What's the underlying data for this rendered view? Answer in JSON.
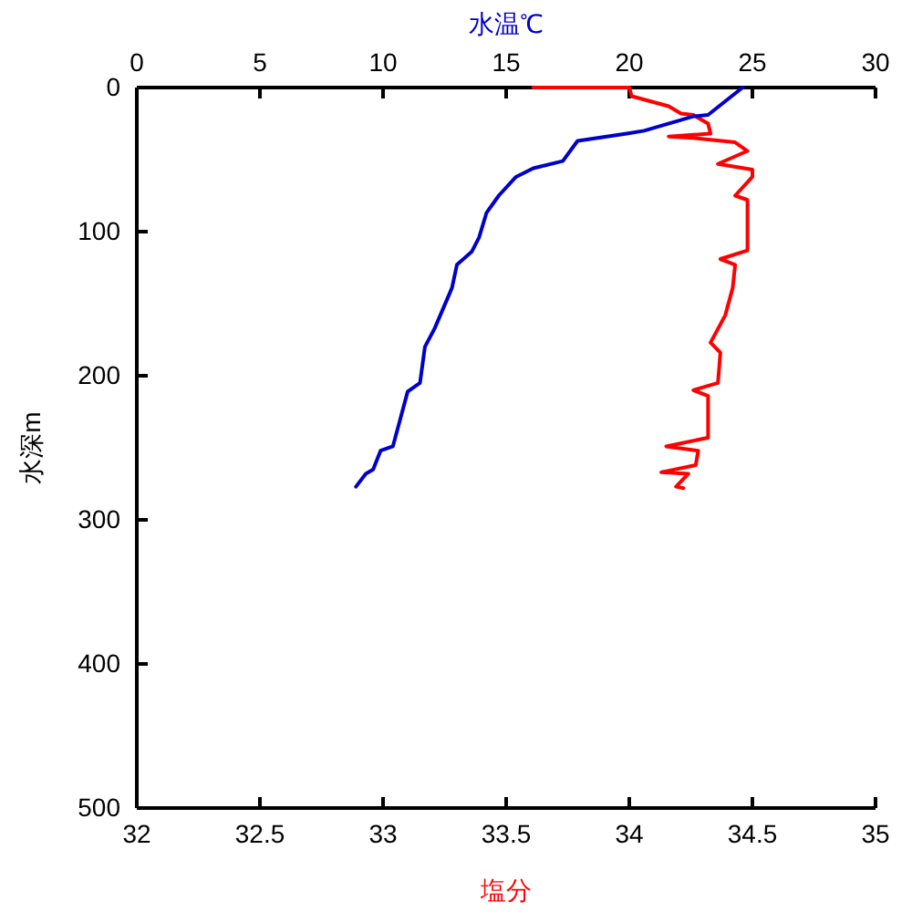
{
  "chart_data": {
    "type": "line",
    "xlabel": "塩分",
    "x2label": "水温℃",
    "ylabel": "水深m",
    "xlim": [
      32,
      35
    ],
    "xticks": [
      32,
      32.5,
      33,
      33.5,
      34,
      34.5,
      35
    ],
    "x2lim": [
      0,
      30
    ],
    "x2ticks": [
      0,
      5,
      10,
      15,
      20,
      25,
      30
    ],
    "ylim": [
      500,
      0
    ],
    "yticks": [
      0,
      100,
      200,
      300,
      400,
      500
    ],
    "series": [
      {
        "color": "#ff0000",
        "x": [
          33.61,
          34.0,
          34.01,
          34.16,
          34.21,
          34.26,
          34.32,
          34.33,
          34.16,
          34.26,
          34.43,
          34.48,
          34.36,
          34.5,
          34.5,
          34.43,
          34.48,
          34.48,
          34.37,
          34.43,
          34.42,
          34.39,
          34.33,
          34.37,
          34.36,
          34.26,
          34.32,
          34.32,
          34.15,
          34.28,
          34.27,
          34.13,
          34.24,
          34.19,
          34.22
        ],
        "values": [
          0,
          0,
          6,
          13,
          18,
          19,
          25,
          32,
          34,
          35,
          38,
          44,
          53,
          57,
          62,
          75,
          78,
          113,
          119,
          123,
          139,
          158,
          177,
          184,
          205,
          210,
          214,
          243,
          249,
          252,
          262,
          267,
          268,
          277,
          278
        ]
      },
      {
        "color": "#0000cc",
        "axis": "x2",
        "x": [
          24.6,
          23.2,
          22.6,
          20.6,
          19.9,
          17.9,
          17.3,
          16.1,
          15.4,
          14.7,
          14.2,
          13.9,
          13.6,
          13.0,
          12.8,
          12.1,
          11.7,
          11.5,
          11.0,
          10.7,
          10.4,
          9.9,
          9.6,
          9.3,
          8.9
        ],
        "values": [
          0,
          19,
          20,
          30,
          32,
          37,
          51,
          56,
          62,
          75,
          87,
          104,
          114,
          123,
          139,
          167,
          180,
          205,
          211,
          230,
          249,
          252,
          265,
          268,
          277
        ]
      }
    ]
  }
}
